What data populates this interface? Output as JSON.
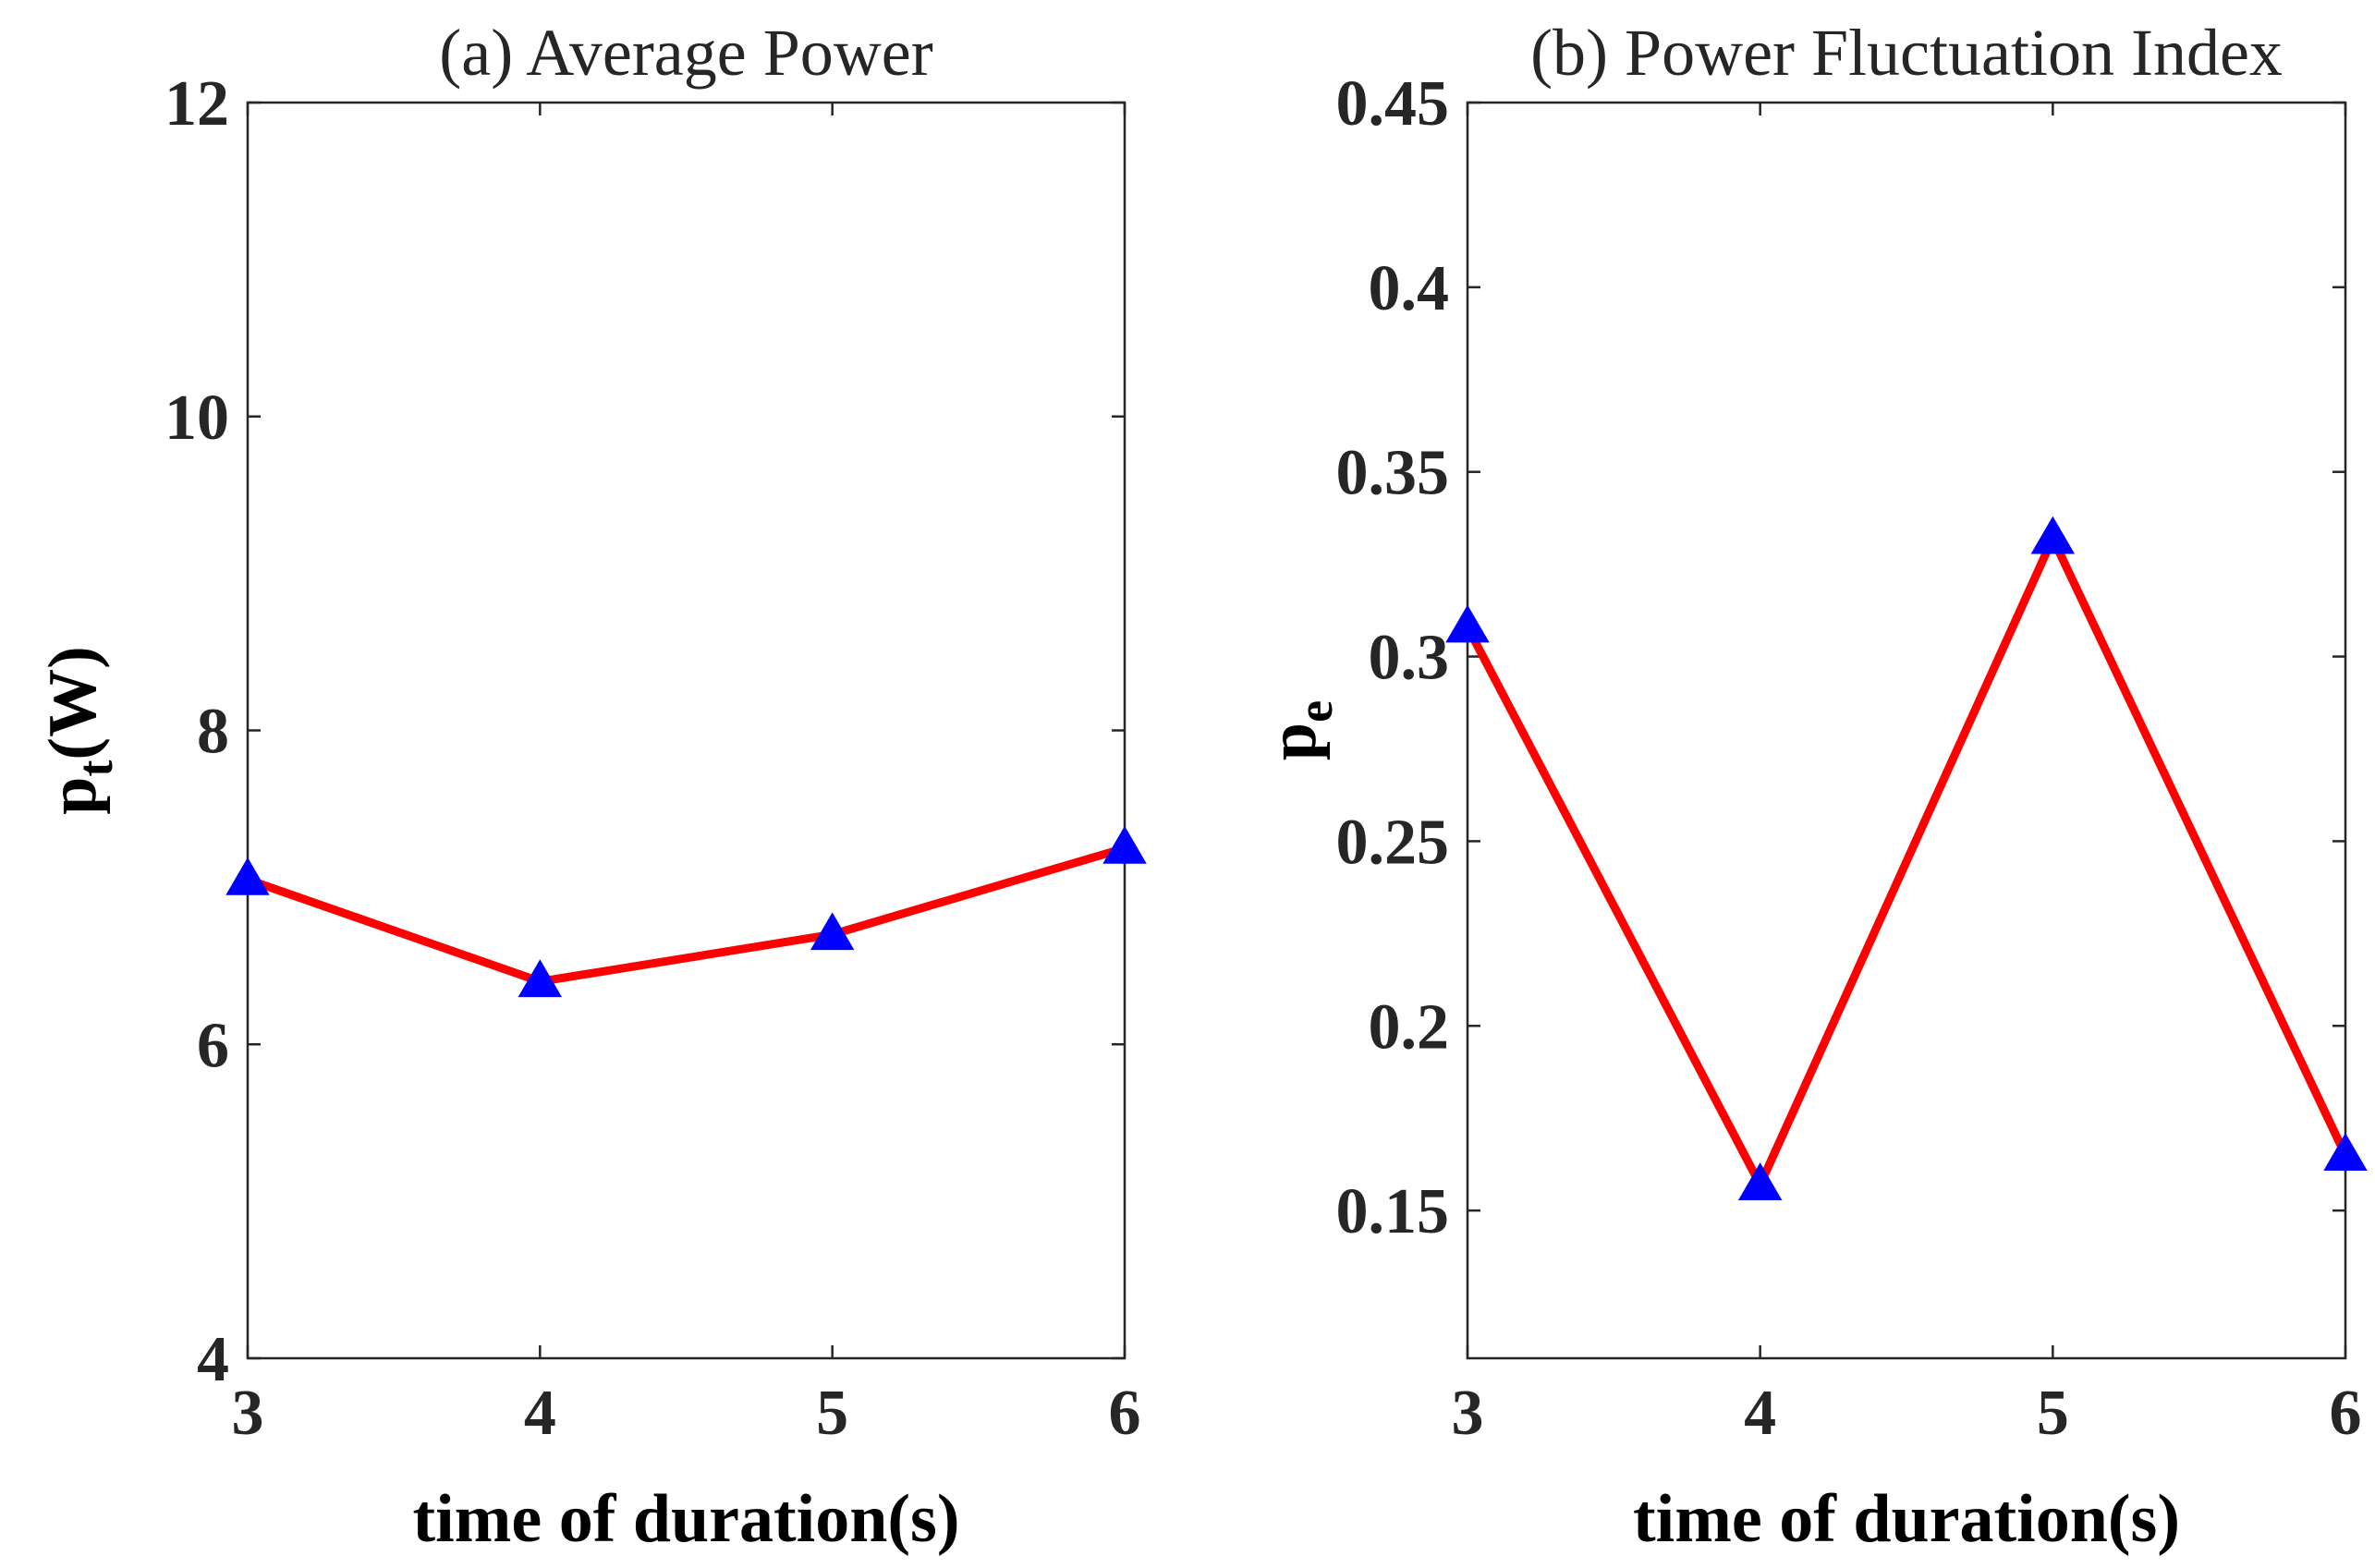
{
  "chart_data": [
    {
      "type": "line",
      "title": "(a) Average Power",
      "xlabel": "time of duration(s)",
      "ylabel": {
        "base": "p",
        "sub": "t",
        "rest": "(W)"
      },
      "x": [
        3,
        4,
        5,
        6
      ],
      "values": [
        7.05,
        6.4,
        6.7,
        7.25
      ],
      "xlim": [
        3,
        6
      ],
      "ylim": [
        4,
        12
      ],
      "xticks": [
        3,
        4,
        5,
        6
      ],
      "yticks": [
        4,
        6,
        8,
        10,
        12
      ],
      "ytick_labels": [
        "4",
        "6",
        "8",
        "10",
        "12"
      ],
      "grid": false,
      "line_color": "#ff0000",
      "marker": "triangle",
      "marker_color": "#0000ff"
    },
    {
      "type": "line",
      "title": "(b) Power Fluctuation Index",
      "xlabel": "time of duration(s)",
      "ylabel": {
        "base": "p",
        "sub": "e",
        "rest": ""
      },
      "x": [
        3,
        4,
        5,
        6
      ],
      "values": [
        0.308,
        0.157,
        0.332,
        0.165
      ],
      "xlim": [
        3,
        6
      ],
      "ylim": [
        0.11,
        0.45
      ],
      "xticks": [
        3,
        4,
        5,
        6
      ],
      "yticks": [
        0.15,
        0.2,
        0.25,
        0.3,
        0.35,
        0.4,
        0.45
      ],
      "ytick_labels": [
        "0.15",
        "0.2",
        "0.25",
        "0.3",
        "0.35",
        "0.4",
        "0.45"
      ],
      "grid": false,
      "line_color": "#ff0000",
      "marker": "triangle",
      "marker_color": "#0000ff"
    }
  ]
}
